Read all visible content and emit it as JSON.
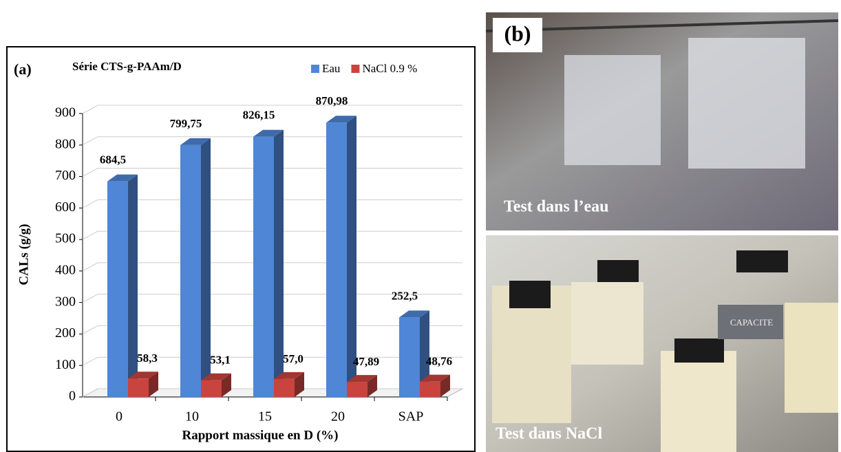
{
  "chart_data": {
    "type": "bar3d",
    "panel_label": "(a)",
    "title": "Série CTS-g-PAAm/D",
    "x_label": "Rapport massique en D (%)",
    "y_label": "CALs (g/g)",
    "categories": [
      "0",
      "10",
      "15",
      "20",
      "SAP"
    ],
    "series": [
      {
        "name": "Eau",
        "color": "#4f86d6",
        "values": [
          684.5,
          799.75,
          826.15,
          870.98,
          252.5
        ],
        "value_labels": [
          "684,5",
          "799,75",
          "826,15",
          "870,98",
          "252,5"
        ]
      },
      {
        "name": "NaCl 0.9 %",
        "color": "#c9443f",
        "values": [
          58.3,
          53.1,
          57.0,
          47.89,
          48.76
        ],
        "value_labels": [
          "58,3",
          "53,1",
          "57,0",
          "47,89",
          "48,76"
        ]
      }
    ],
    "ylim": [
      0,
      900
    ],
    "yticks": [
      0,
      100,
      200,
      300,
      400,
      500,
      600,
      700,
      800,
      900
    ],
    "grid": true,
    "legend": "top-right"
  },
  "photos": {
    "panel_label": "(b)",
    "top_caption": "Test dans l’eau",
    "bottom_caption": "Test dans NaCl",
    "sign_text": "CAPACITE"
  }
}
